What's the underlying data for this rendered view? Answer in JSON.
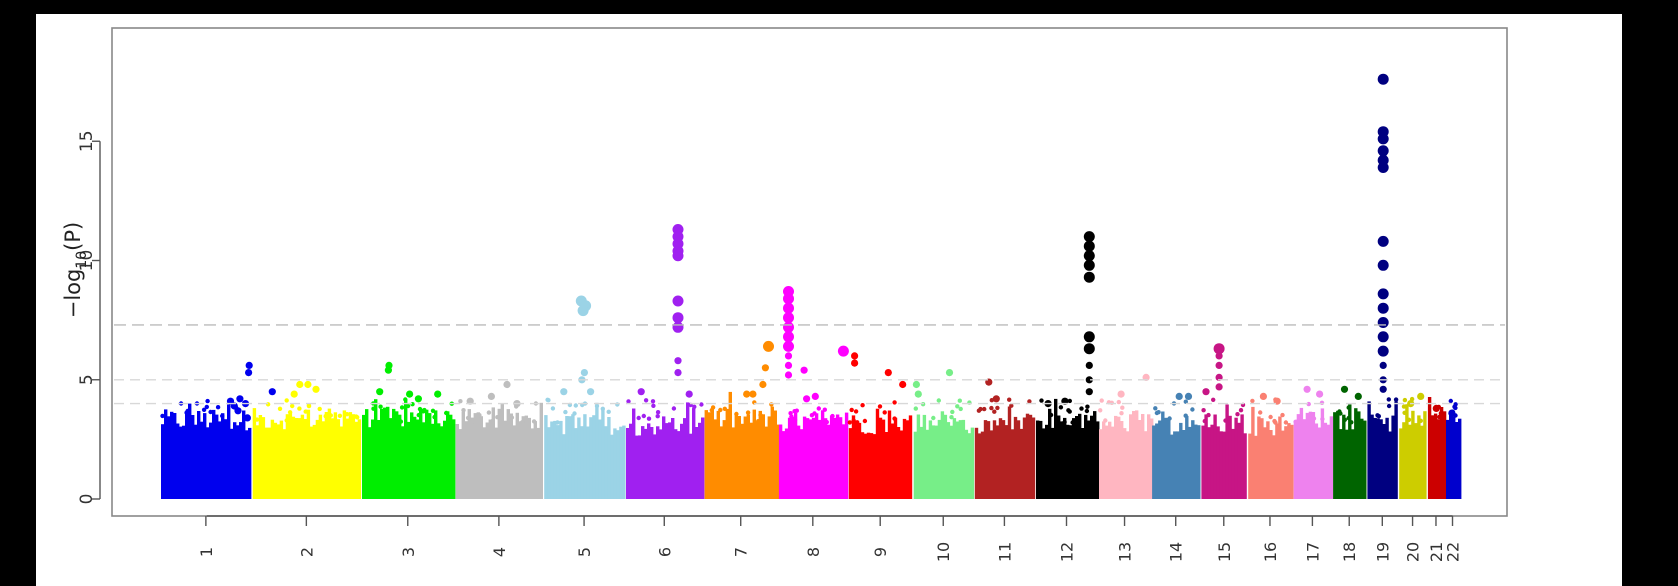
{
  "chart_data": {
    "type": "scatter",
    "subtype": "manhattan",
    "title": "",
    "ylabel_prefix": "−log",
    "ylabel_sub": "10",
    "ylabel_suffix": "(P)",
    "xlabel": "",
    "ylim": [
      0,
      18.5
    ],
    "yticks": [
      0,
      5,
      10,
      15
    ],
    "thresholds": [
      7.3,
      5.0,
      4.0
    ],
    "chromosomes": [
      {
        "label": "1",
        "color": "#0000ee",
        "start": 0,
        "end": 147,
        "peaks": [
          [
            143,
            5.6
          ],
          [
            142,
            5.3
          ],
          [
            128,
            4.2
          ],
          [
            137,
            4.0
          ],
          [
            119,
            3.9
          ],
          [
            113,
            4.1
          ],
          [
            125,
            3.7
          ],
          [
            140,
            3.4
          ],
          [
            180,
            4.5
          ]
        ]
      },
      {
        "label": "2",
        "color": "#ffff00",
        "start": 147,
        "end": 322,
        "peaks": [
          [
            224,
            4.8
          ],
          [
            237,
            4.8
          ],
          [
            250,
            4.6
          ],
          [
            215,
            4.4
          ]
        ]
      },
      {
        "label": "3",
        "color": "#00ee00",
        "start": 322,
        "end": 472,
        "peaks": [
          [
            367,
            5.6
          ],
          [
            366,
            5.4
          ],
          [
            414,
            4.2
          ],
          [
            400,
            4.4
          ],
          [
            445,
            4.4
          ],
          [
            352,
            4.5
          ]
        ]
      },
      {
        "label": "4",
        "color": "#bebebe",
        "start": 472,
        "end": 614,
        "peaks": [
          [
            556,
            4.8
          ],
          [
            531,
            4.3
          ],
          [
            497,
            4.1
          ],
          [
            572,
            4.0
          ]
        ]
      },
      {
        "label": "5",
        "color": "#9bd3e6",
        "start": 614,
        "end": 745,
        "peaks": [
          [
            675,
            8.3
          ],
          [
            682,
            8.1
          ],
          [
            678,
            7.9
          ],
          [
            680,
            5.3
          ],
          [
            676,
            5.0
          ],
          [
            690,
            4.5
          ],
          [
            647,
            4.5
          ]
        ]
      },
      {
        "label": "6",
        "color": "#a020f0",
        "start": 745,
        "end": 871,
        "peaks": [
          [
            830,
            11.3
          ],
          [
            830,
            11.0
          ],
          [
            830,
            10.7
          ],
          [
            830,
            10.4
          ],
          [
            830,
            10.2
          ],
          [
            830,
            8.3
          ],
          [
            830,
            7.6
          ],
          [
            830,
            7.2
          ],
          [
            830,
            5.8
          ],
          [
            830,
            5.3
          ],
          [
            848,
            4.4
          ],
          [
            771,
            4.5
          ]
        ]
      },
      {
        "label": "7",
        "color": "#ff8c00",
        "start": 871,
        "end": 990,
        "peaks": [
          [
            975,
            6.4
          ],
          [
            970,
            5.5
          ],
          [
            966,
            4.8
          ],
          [
            950,
            4.4
          ],
          [
            940,
            4.4
          ]
        ]
      },
      {
        "label": "8",
        "color": "#ff00ff",
        "start": 990,
        "end": 1102,
        "peaks": [
          [
            1007,
            8.7
          ],
          [
            1007,
            8.4
          ],
          [
            1007,
            8.0
          ],
          [
            1007,
            7.6
          ],
          [
            1007,
            7.2
          ],
          [
            1007,
            6.8
          ],
          [
            1007,
            6.4
          ],
          [
            1007,
            6.0
          ],
          [
            1007,
            5.6
          ],
          [
            1007,
            5.2
          ],
          [
            1032,
            5.4
          ],
          [
            1050,
            4.3
          ],
          [
            1036,
            4.2
          ],
          [
            1095,
            6.2
          ]
        ]
      },
      {
        "label": "9",
        "color": "#ff0000",
        "start": 1102,
        "end": 1206,
        "peaks": [
          [
            1113,
            6.0
          ],
          [
            1113,
            5.7
          ],
          [
            1167,
            5.3
          ],
          [
            1190,
            4.8
          ]
        ]
      },
      {
        "label": "10",
        "color": "#77ee88",
        "start": 1206,
        "end": 1304,
        "peaks": [
          [
            1265,
            5.3
          ],
          [
            1212,
            4.8
          ],
          [
            1215,
            4.4
          ]
        ]
      },
      {
        "label": "11",
        "color": "#b22222",
        "start": 1304,
        "end": 1402,
        "peaks": [
          [
            1328,
            4.9
          ],
          [
            1340,
            4.2
          ]
        ]
      },
      {
        "label": "12",
        "color": "#000000",
        "start": 1402,
        "end": 1503,
        "peaks": [
          [
            1489,
            11.0
          ],
          [
            1489,
            10.6
          ],
          [
            1489,
            10.2
          ],
          [
            1489,
            9.8
          ],
          [
            1489,
            9.3
          ],
          [
            1489,
            6.8
          ],
          [
            1489,
            6.3
          ],
          [
            1489,
            5.6
          ],
          [
            1489,
            5.0
          ],
          [
            1489,
            4.5
          ],
          [
            1450,
            4.1
          ],
          [
            1423,
            4.0
          ]
        ]
      },
      {
        "label": "13",
        "color": "#ffb6c1",
        "start": 1503,
        "end": 1588,
        "peaks": [
          [
            1580,
            5.1
          ],
          [
            1540,
            4.4
          ]
        ]
      },
      {
        "label": "14",
        "color": "#4682b4",
        "start": 1588,
        "end": 1667,
        "peaks": [
          [
            1633,
            4.3
          ],
          [
            1648,
            4.3
          ]
        ]
      },
      {
        "label": "15",
        "color": "#c71585",
        "start": 1667,
        "end": 1742,
        "peaks": [
          [
            1697,
            6.3
          ],
          [
            1697,
            6.0
          ],
          [
            1697,
            5.6
          ],
          [
            1697,
            5.1
          ],
          [
            1697,
            4.7
          ],
          [
            1676,
            4.5
          ]
        ]
      },
      {
        "label": "16",
        "color": "#fa8072",
        "start": 1742,
        "end": 1815,
        "peaks": [
          [
            1768,
            4.3
          ],
          [
            1790,
            4.1
          ]
        ]
      },
      {
        "label": "17",
        "color": "#ee82ee",
        "start": 1815,
        "end": 1878,
        "peaks": [
          [
            1838,
            4.6
          ],
          [
            1858,
            4.4
          ]
        ]
      },
      {
        "label": "18",
        "color": "#006400",
        "start": 1878,
        "end": 1933,
        "peaks": [
          [
            1898,
            4.6
          ],
          [
            1920,
            4.3
          ]
        ]
      },
      {
        "label": "19",
        "color": "#000080",
        "start": 1933,
        "end": 1984,
        "peaks": [
          [
            1960,
            17.6
          ],
          [
            1960,
            15.4
          ],
          [
            1960,
            15.1
          ],
          [
            1960,
            14.6
          ],
          [
            1960,
            14.2
          ],
          [
            1960,
            13.9
          ],
          [
            1960,
            10.8
          ],
          [
            1960,
            9.8
          ],
          [
            1960,
            8.6
          ],
          [
            1960,
            8.0
          ],
          [
            1960,
            7.4
          ],
          [
            1960,
            6.8
          ],
          [
            1960,
            6.2
          ],
          [
            1960,
            5.6
          ],
          [
            1960,
            5.0
          ],
          [
            1960,
            4.6
          ]
        ]
      },
      {
        "label": "20",
        "color": "#cdcd00",
        "start": 1984,
        "end": 2030,
        "peaks": [
          [
            2004,
            4.0
          ],
          [
            2020,
            4.3
          ]
        ]
      },
      {
        "label": "21",
        "color": "#cc0000",
        "start": 2030,
        "end": 2059,
        "peaks": [
          [
            2045,
            3.8
          ]
        ]
      },
      {
        "label": "22",
        "color": "#0000cd",
        "start": 2059,
        "end": 2083,
        "peaks": [
          [
            2070,
            3.6
          ]
        ]
      }
    ]
  }
}
